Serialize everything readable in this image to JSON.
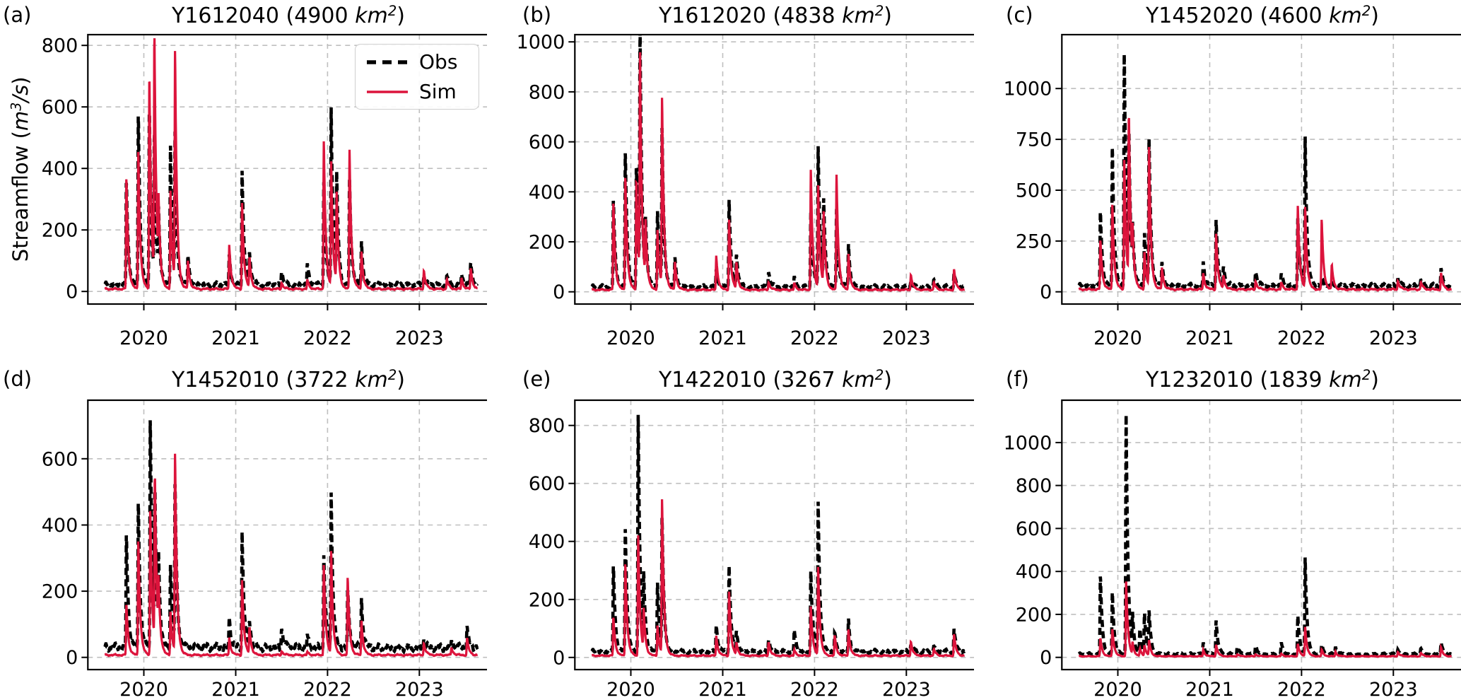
{
  "meta": {
    "open": "(",
    "close": ")",
    "unit": "km",
    "sup": "2",
    "xlabel": "",
    "ylabel_full": "Streamflow (m³/s)"
  },
  "ylabel": {
    "pre": "Streamflow (",
    "m": "m",
    "sup": "3",
    "slash_s": "/s",
    "close": ")"
  },
  "legend": {
    "position": "upper right",
    "items": [
      {
        "key": "obs",
        "label": "Obs"
      },
      {
        "key": "sim",
        "label": "Sim"
      }
    ]
  },
  "colors": {
    "obs": "#000000",
    "sim": "#dc143c",
    "grid": "#bfbfbf",
    "spine": "#000000",
    "background": "#ffffff"
  },
  "chart_data": [
    {
      "type": "line",
      "tag": "(a)",
      "station": "Y1612040",
      "area_km2": "4900",
      "title": "Y1612040 (4900 km²)",
      "xlim": [
        2019.39,
        2023.76
      ],
      "xticks": [
        2020,
        2021,
        2022,
        2023
      ],
      "ylim": [
        -41,
        835
      ],
      "yticks": [
        0,
        200,
        400,
        600,
        800
      ],
      "grid": true,
      "has_legend": true,
      "has_ylabel": true,
      "baseline": {
        "obs": 22,
        "sim": 8
      },
      "peaks_columns": [
        "time_decimal_year",
        "obs_m3s",
        "sim_m3s"
      ],
      "peaks": [
        [
          2019.81,
          360,
          374
        ],
        [
          2019.94,
          585,
          466
        ],
        [
          2020.06,
          611,
          719
        ],
        [
          2020.115,
          480,
          800
        ],
        [
          2020.16,
          215,
          220
        ],
        [
          2020.29,
          482,
          330
        ],
        [
          2020.34,
          478,
          758
        ],
        [
          2020.48,
          120,
          100
        ],
        [
          2020.93,
          120,
          152
        ],
        [
          2021.07,
          397,
          289
        ],
        [
          2021.15,
          128,
          110
        ],
        [
          2021.5,
          70,
          30
        ],
        [
          2021.78,
          88,
          38
        ],
        [
          2021.96,
          365,
          498
        ],
        [
          2022.04,
          590,
          412
        ],
        [
          2022.1,
          355,
          300
        ],
        [
          2022.24,
          368,
          460
        ],
        [
          2022.37,
          160,
          128
        ],
        [
          2023.05,
          48,
          70
        ],
        [
          2023.3,
          55,
          42
        ],
        [
          2023.46,
          58,
          45
        ],
        [
          2023.56,
          92,
          76
        ]
      ]
    },
    {
      "type": "line",
      "tag": "(b)",
      "station": "Y1612020",
      "area_km2": "4838",
      "title": "Y1612020 (4838 km²)",
      "xlim": [
        2019.39,
        2023.76
      ],
      "xticks": [
        2020,
        2021,
        2022,
        2023
      ],
      "ylim": [
        -49,
        1029
      ],
      "yticks": [
        0,
        200,
        400,
        600,
        800,
        1000
      ],
      "grid": true,
      "has_legend": false,
      "has_ylabel": false,
      "baseline": {
        "obs": 20,
        "sim": 8
      },
      "peaks_columns": [
        "time_decimal_year",
        "obs_m3s",
        "sim_m3s"
      ],
      "peaks": [
        [
          2019.81,
          372,
          362
        ],
        [
          2019.94,
          570,
          468
        ],
        [
          2020.06,
          520,
          460
        ],
        [
          2020.1,
          980,
          900
        ],
        [
          2020.16,
          240,
          235
        ],
        [
          2020.29,
          330,
          250
        ],
        [
          2020.34,
          630,
          760
        ],
        [
          2020.48,
          140,
          120
        ],
        [
          2020.93,
          90,
          145
        ],
        [
          2021.07,
          372,
          290
        ],
        [
          2021.15,
          150,
          118
        ],
        [
          2021.5,
          85,
          40
        ],
        [
          2021.78,
          60,
          35
        ],
        [
          2021.96,
          330,
          498
        ],
        [
          2022.04,
          575,
          415
        ],
        [
          2022.1,
          340,
          298
        ],
        [
          2022.24,
          330,
          468
        ],
        [
          2022.37,
          188,
          150
        ],
        [
          2023.05,
          42,
          70
        ],
        [
          2023.3,
          52,
          40
        ],
        [
          2023.52,
          72,
          90
        ]
      ]
    },
    {
      "type": "line",
      "tag": "(c)",
      "station": "Y1452020",
      "area_km2": "4600",
      "title": "Y1452020 (4600 km²)",
      "xlim": [
        2019.39,
        2023.76
      ],
      "xticks": [
        2020,
        2021,
        2022,
        2023
      ],
      "ylim": [
        -60,
        1265
      ],
      "yticks": [
        0,
        250,
        500,
        750,
        1000
      ],
      "grid": true,
      "has_legend": false,
      "has_ylabel": false,
      "baseline": {
        "obs": 30,
        "sim": 12
      },
      "peaks_columns": [
        "time_decimal_year",
        "obs_m3s",
        "sim_m3s"
      ],
      "peaks": [
        [
          2019.81,
          400,
          258
        ],
        [
          2019.94,
          730,
          440
        ],
        [
          2020.07,
          1205,
          668
        ],
        [
          2020.12,
          680,
          830
        ],
        [
          2020.16,
          228,
          208
        ],
        [
          2020.29,
          300,
          200
        ],
        [
          2020.34,
          730,
          700
        ],
        [
          2020.48,
          150,
          120
        ],
        [
          2020.93,
          150,
          92
        ],
        [
          2021.07,
          360,
          288
        ],
        [
          2021.15,
          128,
          80
        ],
        [
          2021.5,
          108,
          55
        ],
        [
          2021.78,
          86,
          46
        ],
        [
          2021.96,
          372,
          432
        ],
        [
          2022.04,
          755,
          408
        ],
        [
          2022.22,
          60,
          358
        ],
        [
          2022.33,
          42,
          130
        ],
        [
          2023.05,
          70,
          56
        ],
        [
          2023.3,
          62,
          50
        ],
        [
          2023.52,
          112,
          92
        ]
      ]
    },
    {
      "type": "line",
      "tag": "(d)",
      "station": "Y1452010",
      "area_km2": "3722",
      "title": "Y1452010 (3722 km²)",
      "xlim": [
        2019.39,
        2023.76
      ],
      "xticks": [
        2020,
        2021,
        2022,
        2023
      ],
      "ylim": [
        -37,
        777
      ],
      "yticks": [
        0,
        200,
        400,
        600
      ],
      "grid": true,
      "has_legend": false,
      "has_ylabel": false,
      "baseline": {
        "obs": 30,
        "sim": 7
      },
      "peaks_columns": [
        "time_decimal_year",
        "obs_m3s",
        "sim_m3s"
      ],
      "peaks": [
        [
          2019.81,
          375,
          162
        ],
        [
          2019.94,
          478,
          360
        ],
        [
          2020.07,
          740,
          455
        ],
        [
          2020.12,
          450,
          522
        ],
        [
          2020.16,
          245,
          165
        ],
        [
          2020.29,
          290,
          140
        ],
        [
          2020.34,
          500,
          608
        ],
        [
          2020.93,
          122,
          60
        ],
        [
          2021.07,
          385,
          235
        ],
        [
          2021.15,
          112,
          90
        ],
        [
          2021.5,
          95,
          20
        ],
        [
          2021.78,
          66,
          16
        ],
        [
          2021.96,
          318,
          285
        ],
        [
          2022.04,
          490,
          315
        ],
        [
          2022.22,
          200,
          243
        ],
        [
          2022.37,
          176,
          110
        ],
        [
          2023.05,
          56,
          44
        ],
        [
          2023.35,
          52,
          30
        ],
        [
          2023.52,
          90,
          58
        ]
      ]
    },
    {
      "type": "line",
      "tag": "(e)",
      "station": "Y1422010",
      "area_km2": "3267",
      "title": "Y1422010 (3267 km²)",
      "xlim": [
        2019.39,
        2023.76
      ],
      "xticks": [
        2020,
        2021,
        2022,
        2023
      ],
      "ylim": [
        -42,
        887
      ],
      "yticks": [
        0,
        200,
        400,
        600,
        800
      ],
      "grid": true,
      "has_legend": false,
      "has_ylabel": false,
      "baseline": {
        "obs": 20,
        "sim": 6
      },
      "peaks_columns": [
        "time_decimal_year",
        "obs_m3s",
        "sim_m3s"
      ],
      "peaks": [
        [
          2019.81,
          320,
          140
        ],
        [
          2019.94,
          455,
          330
        ],
        [
          2020.08,
          845,
          425
        ],
        [
          2020.14,
          250,
          148
        ],
        [
          2020.29,
          265,
          112
        ],
        [
          2020.34,
          460,
          540
        ],
        [
          2020.93,
          112,
          75
        ],
        [
          2021.07,
          320,
          228
        ],
        [
          2021.15,
          92,
          50
        ],
        [
          2021.5,
          66,
          55
        ],
        [
          2021.78,
          92,
          26
        ],
        [
          2021.96,
          305,
          180
        ],
        [
          2022.04,
          530,
          308
        ],
        [
          2022.22,
          82,
          76
        ],
        [
          2022.37,
          132,
          96
        ],
        [
          2023.05,
          46,
          56
        ],
        [
          2023.3,
          42,
          30
        ],
        [
          2023.52,
          96,
          80
        ]
      ]
    },
    {
      "type": "line",
      "tag": "(f)",
      "station": "Y1232010",
      "area_km2": "1839",
      "title": "Y1232010 (1839 km²)",
      "xlim": [
        2019.39,
        2023.76
      ],
      "xticks": [
        2020,
        2021,
        2022,
        2023
      ],
      "ylim": [
        -57,
        1197
      ],
      "yticks": [
        0,
        200,
        400,
        600,
        800,
        1000
      ],
      "grid": true,
      "has_legend": false,
      "has_ylabel": false,
      "baseline": {
        "obs": 15,
        "sim": 5
      },
      "peaks_columns": [
        "time_decimal_year",
        "obs_m3s",
        "sim_m3s"
      ],
      "peaks": [
        [
          2019.81,
          385,
          90
        ],
        [
          2019.94,
          310,
          135
        ],
        [
          2020.09,
          1135,
          355
        ],
        [
          2020.16,
          170,
          60
        ],
        [
          2020.24,
          130,
          40
        ],
        [
          2020.29,
          200,
          55
        ],
        [
          2020.34,
          200,
          75
        ],
        [
          2020.93,
          70,
          35
        ],
        [
          2021.07,
          175,
          60
        ],
        [
          2021.3,
          55,
          15
        ],
        [
          2021.5,
          60,
          15
        ],
        [
          2021.78,
          68,
          16
        ],
        [
          2021.96,
          200,
          65
        ],
        [
          2022.04,
          460,
          140
        ],
        [
          2022.22,
          58,
          36
        ],
        [
          2022.37,
          48,
          26
        ],
        [
          2023.05,
          38,
          26
        ],
        [
          2023.3,
          44,
          22
        ],
        [
          2023.52,
          68,
          46
        ]
      ]
    }
  ]
}
